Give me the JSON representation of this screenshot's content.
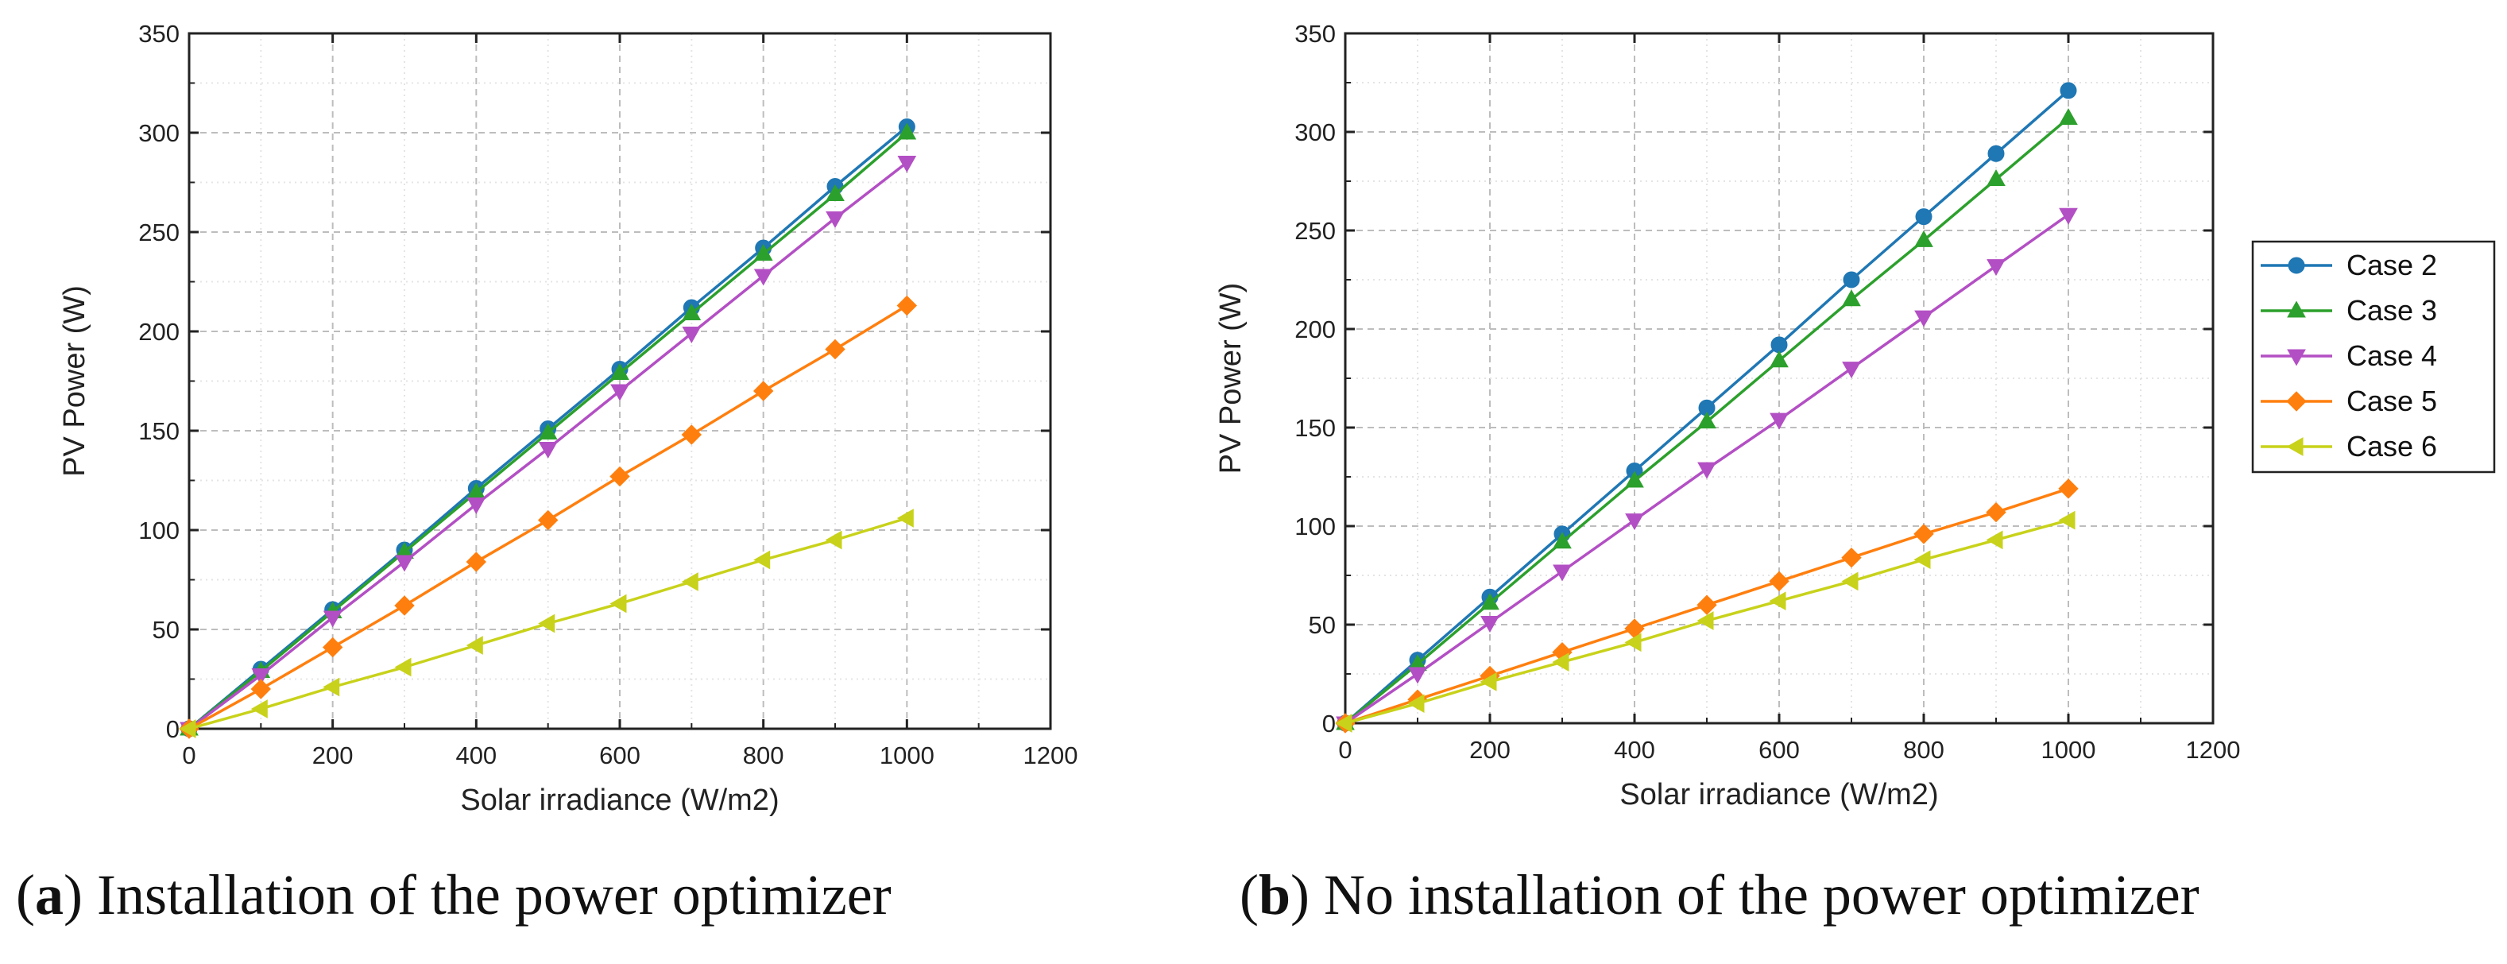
{
  "figure": {
    "captions": [
      {
        "open": "(",
        "letter": "a",
        "close": ")",
        "text": " Installation of the power optimizer"
      },
      {
        "open": "(",
        "letter": "b",
        "close": ")",
        "text": " No installation of the power optimizer"
      }
    ],
    "legend": {
      "placement": "right of panel b",
      "entries": [
        "Case 2",
        "Case 3",
        "Case 4",
        "Case 5",
        "Case 6"
      ]
    }
  },
  "series_style": [
    {
      "name": "Case 2",
      "color": "#1f77b4",
      "marker": "circle"
    },
    {
      "name": "Case 3",
      "color": "#2ca02c",
      "marker": "triangle-up"
    },
    {
      "name": "Case 4",
      "color": "#b34fc4",
      "marker": "triangle-down"
    },
    {
      "name": "Case 5",
      "color": "#ff7f0e",
      "marker": "diamond"
    },
    {
      "name": "Case 6",
      "color": "#c8d21a",
      "marker": "triangle-left"
    }
  ],
  "chart_data": [
    {
      "type": "line",
      "panel": "a",
      "title": "",
      "xlabel": "Solar irradiance (W/m2)",
      "ylabel": "PV Power (W)",
      "xlim": [
        0,
        1200
      ],
      "ylim": [
        0,
        350
      ],
      "xticks": [
        "0",
        "200",
        "400",
        "600",
        "800",
        "1000",
        "1200"
      ],
      "yticks": [
        "0",
        "50",
        "100",
        "150",
        "200",
        "250",
        "300",
        "350"
      ],
      "grid": true,
      "x": [
        0,
        100,
        200,
        300,
        400,
        500,
        600,
        700,
        800,
        900,
        1000
      ],
      "series": [
        {
          "name": "Case 2",
          "values": [
            0,
            30,
            60,
            90,
            121,
            151,
            181,
            212,
            242,
            273,
            303
          ]
        },
        {
          "name": "Case 3",
          "values": [
            0,
            29,
            59,
            89,
            119,
            149,
            179,
            209,
            239,
            269,
            300
          ]
        },
        {
          "name": "Case 4",
          "values": [
            0,
            27,
            56,
            84,
            113,
            141,
            170,
            199,
            228,
            257,
            285
          ]
        },
        {
          "name": "Case 5",
          "values": [
            0,
            20,
            41,
            62,
            84,
            105,
            127,
            148,
            170,
            191,
            213
          ]
        },
        {
          "name": "Case 6",
          "values": [
            0,
            10,
            21,
            31,
            42,
            53,
            63,
            74,
            85,
            95,
            106
          ]
        }
      ]
    },
    {
      "type": "line",
      "panel": "b",
      "title": "",
      "xlabel": "Solar irradiance (W/m2)",
      "ylabel": "PV Power (W)",
      "xlim": [
        0,
        1200
      ],
      "ylim": [
        0,
        350
      ],
      "xticks": [
        "0",
        "200",
        "400",
        "600",
        "800",
        "1000",
        "1200"
      ],
      "yticks": [
        "0",
        "50",
        "100",
        "150",
        "200",
        "250",
        "300",
        "350"
      ],
      "grid": true,
      "x": [
        0,
        100,
        200,
        300,
        400,
        500,
        600,
        700,
        800,
        900,
        1000
      ],
      "series": [
        {
          "name": "Case 2",
          "values": [
            0,
            32,
            64,
            96,
            128,
            160,
            192,
            225,
            257,
            289,
            321
          ]
        },
        {
          "name": "Case 3",
          "values": [
            0,
            30,
            61,
            92,
            123,
            153,
            184,
            215,
            245,
            276,
            307
          ]
        },
        {
          "name": "Case 4",
          "values": [
            0,
            25,
            51,
            77,
            103,
            129,
            154,
            180,
            206,
            232,
            258
          ]
        },
        {
          "name": "Case 5",
          "values": [
            0,
            12,
            24,
            36,
            48,
            60,
            72,
            84,
            96,
            107,
            119
          ]
        },
        {
          "name": "Case 6",
          "values": [
            0,
            10,
            21,
            31,
            41,
            52,
            62,
            72,
            83,
            93,
            103
          ]
        }
      ]
    }
  ]
}
